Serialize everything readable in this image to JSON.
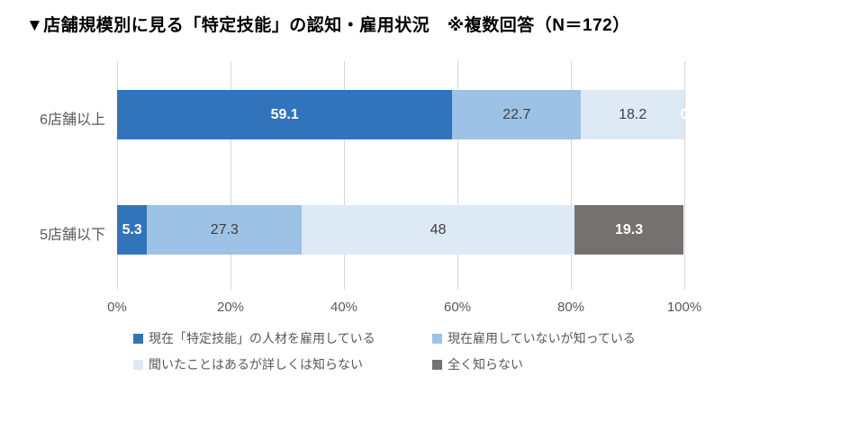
{
  "title": "▼店舗規模別に見る「特定技能」の認知・雇用状況　※複数回答（N＝172）",
  "colors": {
    "grid": "#d9d9d9",
    "axis_text": "#595959",
    "dark_label_text": "#404040",
    "white_label_text": "#ffffff",
    "title_text": "#000000"
  },
  "chart_data": {
    "type": "bar",
    "stacked": true,
    "orientation": "horizontal",
    "title": "▼店舗規模別に見る「特定技能」の認知・雇用状況　※複数回答（N＝172）",
    "categories": [
      "6店舗以上",
      "5店舗以下"
    ],
    "series": [
      {
        "name": "現在「特定技能」の人材を雇用している",
        "color": "#3174bc",
        "label_color": "#ffffff",
        "values": [
          59.1,
          5.3
        ]
      },
      {
        "name": "現在雇用していないが知っている",
        "color": "#9cc2e5",
        "label_color": "#404040",
        "values": [
          22.7,
          27.3
        ]
      },
      {
        "name": "聞いたことはあるが詳しくは知らない",
        "color": "#dee9f6",
        "label_color": "#404040",
        "values": [
          18.2,
          48
        ]
      },
      {
        "name": "全く知らない",
        "color": "#767171",
        "label_color": "#ffffff",
        "values": [
          0,
          19.3
        ]
      }
    ],
    "x_ticks": [
      "0%",
      "20%",
      "40%",
      "60%",
      "80%",
      "100%"
    ],
    "x_tick_values": [
      0,
      20,
      40,
      60,
      80,
      100
    ],
    "xlim": [
      0,
      100
    ],
    "grid": true,
    "legend_position": "bottom"
  }
}
